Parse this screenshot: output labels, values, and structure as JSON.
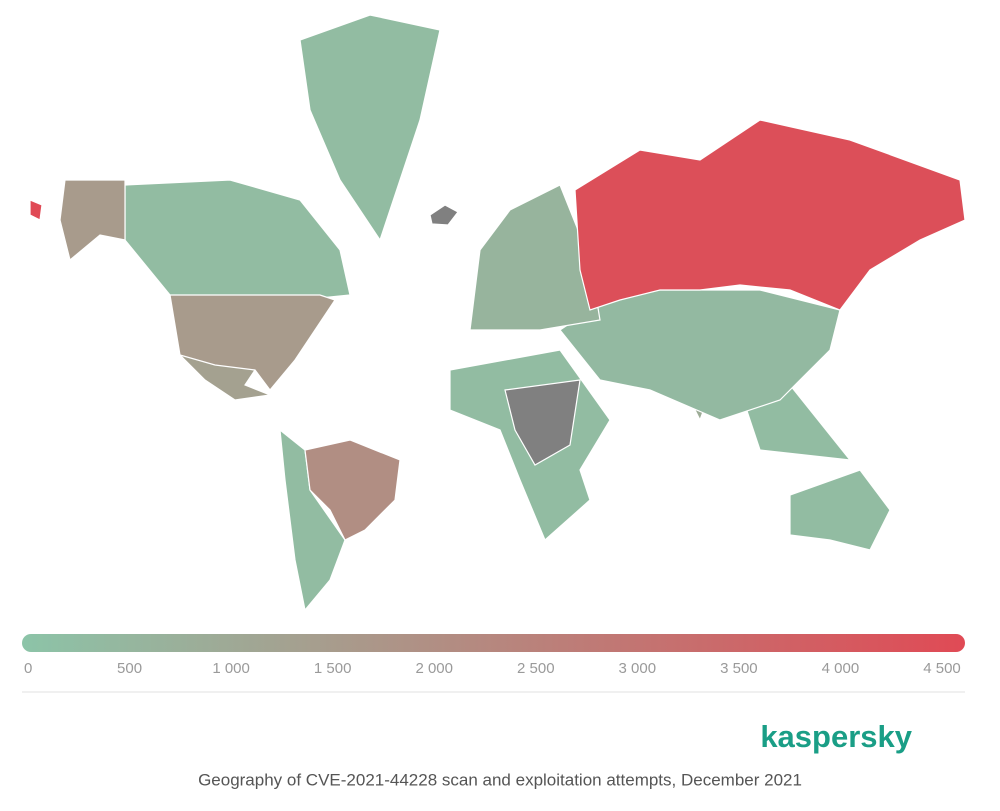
{
  "chart_data": {
    "type": "choropleth",
    "title": "Geography of CVE-2021-44228 scan and exploitation attempts, December 2021",
    "brand": "kaspersky",
    "values": [
      4300,
      2000,
      1500,
      1500,
      1300,
      300,
      300,
      600,
      1000,
      300,
      400,
      900,
      300,
      300,
      300
    ],
    "colors": [
      "#8cc4a8",
      "#e04a55"
    ],
    "xlim": [
      0,
      4500
    ],
    "xticks": [
      0,
      500,
      {
        "value": 1000,
        "label": "1 000"
      },
      {
        "value": 1500,
        "label": "1 500"
      },
      {
        "value": 2000,
        "label": "2 000"
      },
      {
        "value": 2500,
        "label": "2 500"
      },
      {
        "value": 3000,
        "label": "3 000"
      },
      {
        "value": 3500,
        "label": "3 500"
      },
      {
        "value": 4000,
        "label": "4 000"
      },
      {
        "value": 4500,
        "label": "4 500"
      }
    ]
  }
}
